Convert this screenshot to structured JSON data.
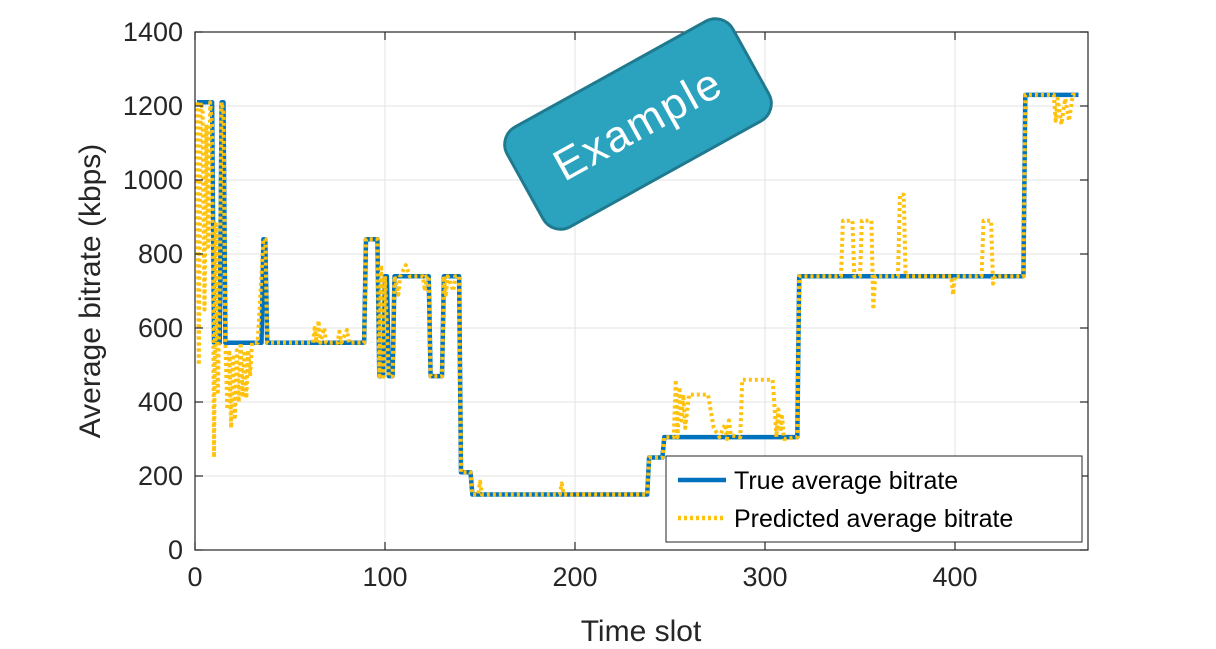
{
  "chart_data": {
    "type": "line",
    "title": "",
    "xlabel": "Time slot",
    "ylabel": "Average bitrate (kbps)",
    "xlim": [
      0,
      470
    ],
    "ylim": [
      0,
      1400
    ],
    "xticks": [
      0,
      100,
      200,
      300,
      400
    ],
    "yticks": [
      0,
      200,
      400,
      600,
      800,
      1000,
      1200,
      1400
    ],
    "grid": true,
    "legend_position": "bottom-right",
    "series": [
      {
        "name": "True average bitrate",
        "color": "#0072BD",
        "style": "solid",
        "points": [
          [
            1,
            1210
          ],
          [
            9,
            1210
          ],
          [
            10,
            560
          ],
          [
            13,
            560
          ],
          [
            14,
            1210
          ],
          [
            15,
            1210
          ],
          [
            16,
            560
          ],
          [
            35,
            560
          ],
          [
            36,
            840
          ],
          [
            37,
            840
          ],
          [
            38,
            560
          ],
          [
            89,
            560
          ],
          [
            90,
            840
          ],
          [
            96,
            840
          ],
          [
            97,
            470
          ],
          [
            99,
            470
          ],
          [
            100,
            740
          ],
          [
            101,
            740
          ],
          [
            102,
            470
          ],
          [
            104,
            470
          ],
          [
            105,
            740
          ],
          [
            123,
            740
          ],
          [
            124,
            470
          ],
          [
            130,
            470
          ],
          [
            131,
            740
          ],
          [
            139,
            740
          ],
          [
            140,
            210
          ],
          [
            145,
            210
          ],
          [
            146,
            150
          ],
          [
            238,
            150
          ],
          [
            239,
            250
          ],
          [
            246,
            250
          ],
          [
            247,
            305
          ],
          [
            317,
            305
          ],
          [
            318,
            740
          ],
          [
            436,
            740
          ],
          [
            437,
            1230
          ],
          [
            465,
            1230
          ]
        ]
      },
      {
        "name": "Predicted average bitrate",
        "color": "#FFC20E",
        "style": "dotted",
        "points": [
          [
            1,
            1210
          ],
          [
            2,
            500
          ],
          [
            3,
            1210
          ],
          [
            4,
            1190
          ],
          [
            5,
            650
          ],
          [
            6,
            1150
          ],
          [
            7,
            820
          ],
          [
            8,
            1210
          ],
          [
            9,
            1150
          ],
          [
            10,
            250
          ],
          [
            11,
            880
          ],
          [
            12,
            420
          ],
          [
            13,
            690
          ],
          [
            14,
            1210
          ],
          [
            15,
            1180
          ],
          [
            16,
            560
          ],
          [
            17,
            380
          ],
          [
            18,
            540
          ],
          [
            19,
            330
          ],
          [
            20,
            520
          ],
          [
            21,
            360
          ],
          [
            22,
            540
          ],
          [
            23,
            400
          ],
          [
            24,
            560
          ],
          [
            25,
            420
          ],
          [
            26,
            530
          ],
          [
            27,
            410
          ],
          [
            28,
            540
          ],
          [
            29,
            470
          ],
          [
            30,
            560
          ],
          [
            33,
            560
          ],
          [
            36,
            840
          ],
          [
            37,
            840
          ],
          [
            38,
            560
          ],
          [
            62,
            560
          ],
          [
            63,
            600
          ],
          [
            64,
            560
          ],
          [
            65,
            620
          ],
          [
            66,
            560
          ],
          [
            68,
            600
          ],
          [
            69,
            560
          ],
          [
            75,
            560
          ],
          [
            76,
            590
          ],
          [
            77,
            560
          ],
          [
            80,
            595
          ],
          [
            81,
            560
          ],
          [
            89,
            560
          ],
          [
            90,
            840
          ],
          [
            96,
            840
          ],
          [
            97,
            470
          ],
          [
            98,
            770
          ],
          [
            99,
            460
          ],
          [
            100,
            740
          ],
          [
            101,
            600
          ],
          [
            102,
            470
          ],
          [
            104,
            470
          ],
          [
            105,
            740
          ],
          [
            107,
            690
          ],
          [
            108,
            740
          ],
          [
            111,
            770
          ],
          [
            113,
            740
          ],
          [
            120,
            740
          ],
          [
            121,
            700
          ],
          [
            122,
            740
          ],
          [
            123,
            740
          ],
          [
            124,
            470
          ],
          [
            130,
            470
          ],
          [
            131,
            740
          ],
          [
            132,
            690
          ],
          [
            133,
            740
          ],
          [
            136,
            700
          ],
          [
            137,
            740
          ],
          [
            139,
            740
          ],
          [
            140,
            210
          ],
          [
            145,
            210
          ],
          [
            146,
            150
          ],
          [
            149,
            150
          ],
          [
            150,
            185
          ],
          [
            151,
            150
          ],
          [
            192,
            150
          ],
          [
            193,
            180
          ],
          [
            194,
            150
          ],
          [
            238,
            150
          ],
          [
            239,
            250
          ],
          [
            246,
            250
          ],
          [
            247,
            305
          ],
          [
            252,
            305
          ],
          [
            253,
            460
          ],
          [
            254,
            305
          ],
          [
            255,
            440
          ],
          [
            256,
            350
          ],
          [
            257,
            420
          ],
          [
            258,
            330
          ],
          [
            260,
            420
          ],
          [
            270,
            420
          ],
          [
            273,
            330
          ],
          [
            276,
            305
          ],
          [
            279,
            340
          ],
          [
            280,
            300
          ],
          [
            281,
            350
          ],
          [
            282,
            310
          ],
          [
            287,
            305
          ],
          [
            288,
            460
          ],
          [
            304,
            460
          ],
          [
            305,
            390
          ],
          [
            306,
            305
          ],
          [
            307,
            380
          ],
          [
            308,
            320
          ],
          [
            309,
            360
          ],
          [
            310,
            300
          ],
          [
            317,
            305
          ],
          [
            318,
            740
          ],
          [
            340,
            740
          ],
          [
            341,
            890
          ],
          [
            346,
            890
          ],
          [
            347,
            740
          ],
          [
            350,
            740
          ],
          [
            351,
            890
          ],
          [
            356,
            890
          ],
          [
            357,
            650
          ],
          [
            358,
            740
          ],
          [
            370,
            740
          ],
          [
            371,
            960
          ],
          [
            373,
            960
          ],
          [
            374,
            740
          ],
          [
            398,
            740
          ],
          [
            399,
            690
          ],
          [
            400,
            740
          ],
          [
            414,
            740
          ],
          [
            415,
            890
          ],
          [
            419,
            890
          ],
          [
            420,
            720
          ],
          [
            421,
            740
          ],
          [
            436,
            740
          ],
          [
            437,
            1230
          ],
          [
            452,
            1230
          ],
          [
            453,
            1160
          ],
          [
            454,
            1220
          ],
          [
            456,
            1150
          ],
          [
            458,
            1220
          ],
          [
            460,
            1160
          ],
          [
            462,
            1230
          ],
          [
            465,
            1230
          ]
        ]
      }
    ],
    "annotations": [
      {
        "text": "Example",
        "style": "badge",
        "fill": "#2CA3BE",
        "stroke": "#1F7A8F",
        "text_color": "#ffffff"
      }
    ]
  }
}
